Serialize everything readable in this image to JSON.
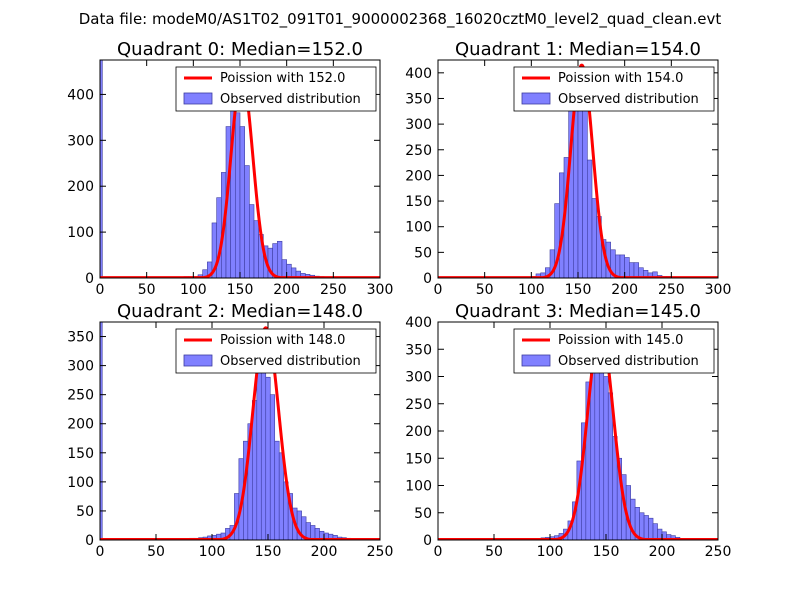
{
  "figure": {
    "suptitle": "Data file: modeM0/AS1T02_091T01_9000002368_16020cztM0_level2_quad_clean.evt"
  },
  "colors": {
    "bar_fill": "#8080ff",
    "bar_edge": "#3c3ca0",
    "poisson_line": "#ff0000",
    "axes": "#000000"
  },
  "chart_data": [
    {
      "type": "bar",
      "title": "Quadrant 0: Median=152.0",
      "xlim": [
        0,
        300
      ],
      "ylim": [
        0,
        475
      ],
      "xticks": [
        0,
        50,
        100,
        150,
        200,
        250,
        300
      ],
      "yticks": [
        0,
        100,
        200,
        300,
        400
      ],
      "bin_width": 5,
      "zero_bin_value": 475,
      "bins_x": [
        85,
        90,
        95,
        100,
        105,
        110,
        115,
        120,
        125,
        130,
        135,
        140,
        145,
        150,
        155,
        160,
        165,
        170,
        175,
        180,
        185,
        190,
        195,
        200,
        205,
        210,
        215,
        220,
        225,
        230,
        235,
        240,
        245,
        250,
        255
      ],
      "bins_y": [
        2,
        3,
        3,
        3,
        7,
        18,
        35,
        120,
        175,
        230,
        330,
        380,
        360,
        330,
        245,
        160,
        125,
        95,
        70,
        65,
        75,
        80,
        40,
        30,
        22,
        15,
        10,
        8,
        6,
        4,
        3,
        2,
        2,
        1,
        1
      ],
      "poisson_mean": 152.0,
      "poisson_peak": 440,
      "series": [
        {
          "name": "Poission with 152.0",
          "kind": "line"
        },
        {
          "name": "Observed distribution",
          "kind": "bar"
        }
      ]
    },
    {
      "type": "bar",
      "title": "Quadrant 1: Median=154.0",
      "xlim": [
        0,
        300
      ],
      "ylim": [
        0,
        425
      ],
      "xticks": [
        0,
        50,
        100,
        150,
        200,
        250,
        300
      ],
      "yticks": [
        0,
        50,
        100,
        150,
        200,
        250,
        300,
        350,
        400
      ],
      "bin_width": 5,
      "zero_bin_value": 0,
      "bins_x": [
        80,
        85,
        90,
        95,
        100,
        105,
        110,
        115,
        120,
        125,
        130,
        135,
        140,
        145,
        150,
        155,
        160,
        165,
        170,
        175,
        180,
        185,
        190,
        195,
        200,
        205,
        210,
        215,
        220,
        225,
        230,
        235,
        240,
        245,
        250,
        255
      ],
      "bins_y": [
        2,
        1,
        2,
        2,
        3,
        8,
        10,
        20,
        55,
        145,
        205,
        235,
        340,
        370,
        410,
        330,
        230,
        155,
        120,
        75,
        70,
        55,
        45,
        45,
        40,
        30,
        30,
        20,
        15,
        10,
        12,
        5,
        3,
        3,
        2,
        1
      ],
      "poisson_mean": 154.0,
      "poisson_peak": 415,
      "series": [
        {
          "name": "Poission with 154.0",
          "kind": "line"
        },
        {
          "name": "Observed distribution",
          "kind": "bar"
        }
      ]
    },
    {
      "type": "bar",
      "title": "Quadrant 2: Median=148.0",
      "xlim": [
        0,
        250
      ],
      "ylim": [
        0,
        375
      ],
      "xticks": [
        0,
        50,
        100,
        150,
        200,
        250
      ],
      "yticks": [
        0,
        50,
        100,
        150,
        200,
        250,
        300,
        350
      ],
      "bin_width": 4,
      "zero_bin_value": 375,
      "bins_x": [
        80,
        84,
        88,
        92,
        96,
        100,
        104,
        108,
        112,
        116,
        120,
        124,
        128,
        132,
        136,
        140,
        144,
        148,
        152,
        156,
        160,
        164,
        168,
        172,
        176,
        180,
        184,
        188,
        192,
        196,
        200,
        204,
        208,
        212,
        216,
        220,
        224,
        228,
        232
      ],
      "bins_y": [
        3,
        3,
        4,
        5,
        7,
        8,
        10,
        12,
        20,
        25,
        80,
        140,
        170,
        200,
        240,
        360,
        300,
        280,
        250,
        170,
        150,
        100,
        80,
        55,
        50,
        40,
        30,
        25,
        20,
        15,
        12,
        10,
        8,
        5,
        4,
        3,
        2,
        2,
        1
      ],
      "poisson_mean": 148.0,
      "poisson_peak": 365,
      "series": [
        {
          "name": "Poission with 148.0",
          "kind": "line"
        },
        {
          "name": "Observed distribution",
          "kind": "bar"
        }
      ]
    },
    {
      "type": "bar",
      "title": "Quadrant 3: Median=145.0",
      "xlim": [
        0,
        250
      ],
      "ylim": [
        0,
        400
      ],
      "xticks": [
        0,
        50,
        100,
        150,
        200,
        250
      ],
      "yticks": [
        0,
        50,
        100,
        150,
        200,
        250,
        300,
        350,
        400
      ],
      "bin_width": 4,
      "zero_bin_value": 0,
      "bins_x": [
        72,
        76,
        80,
        84,
        88,
        92,
        96,
        100,
        104,
        108,
        112,
        116,
        120,
        124,
        128,
        132,
        136,
        140,
        144,
        148,
        152,
        156,
        160,
        164,
        168,
        172,
        176,
        180,
        184,
        188,
        192,
        196,
        200,
        204,
        208,
        212,
        216
      ],
      "bins_y": [
        2,
        1,
        1,
        2,
        3,
        4,
        5,
        6,
        8,
        12,
        20,
        35,
        70,
        145,
        215,
        290,
        310,
        385,
        370,
        300,
        270,
        190,
        150,
        120,
        100,
        75,
        60,
        50,
        45,
        40,
        30,
        20,
        15,
        10,
        8,
        5,
        3
      ],
      "poisson_mean": 145.0,
      "poisson_peak": 385,
      "series": [
        {
          "name": "Poission with 145.0",
          "kind": "line"
        },
        {
          "name": "Observed distribution",
          "kind": "bar"
        }
      ]
    }
  ]
}
